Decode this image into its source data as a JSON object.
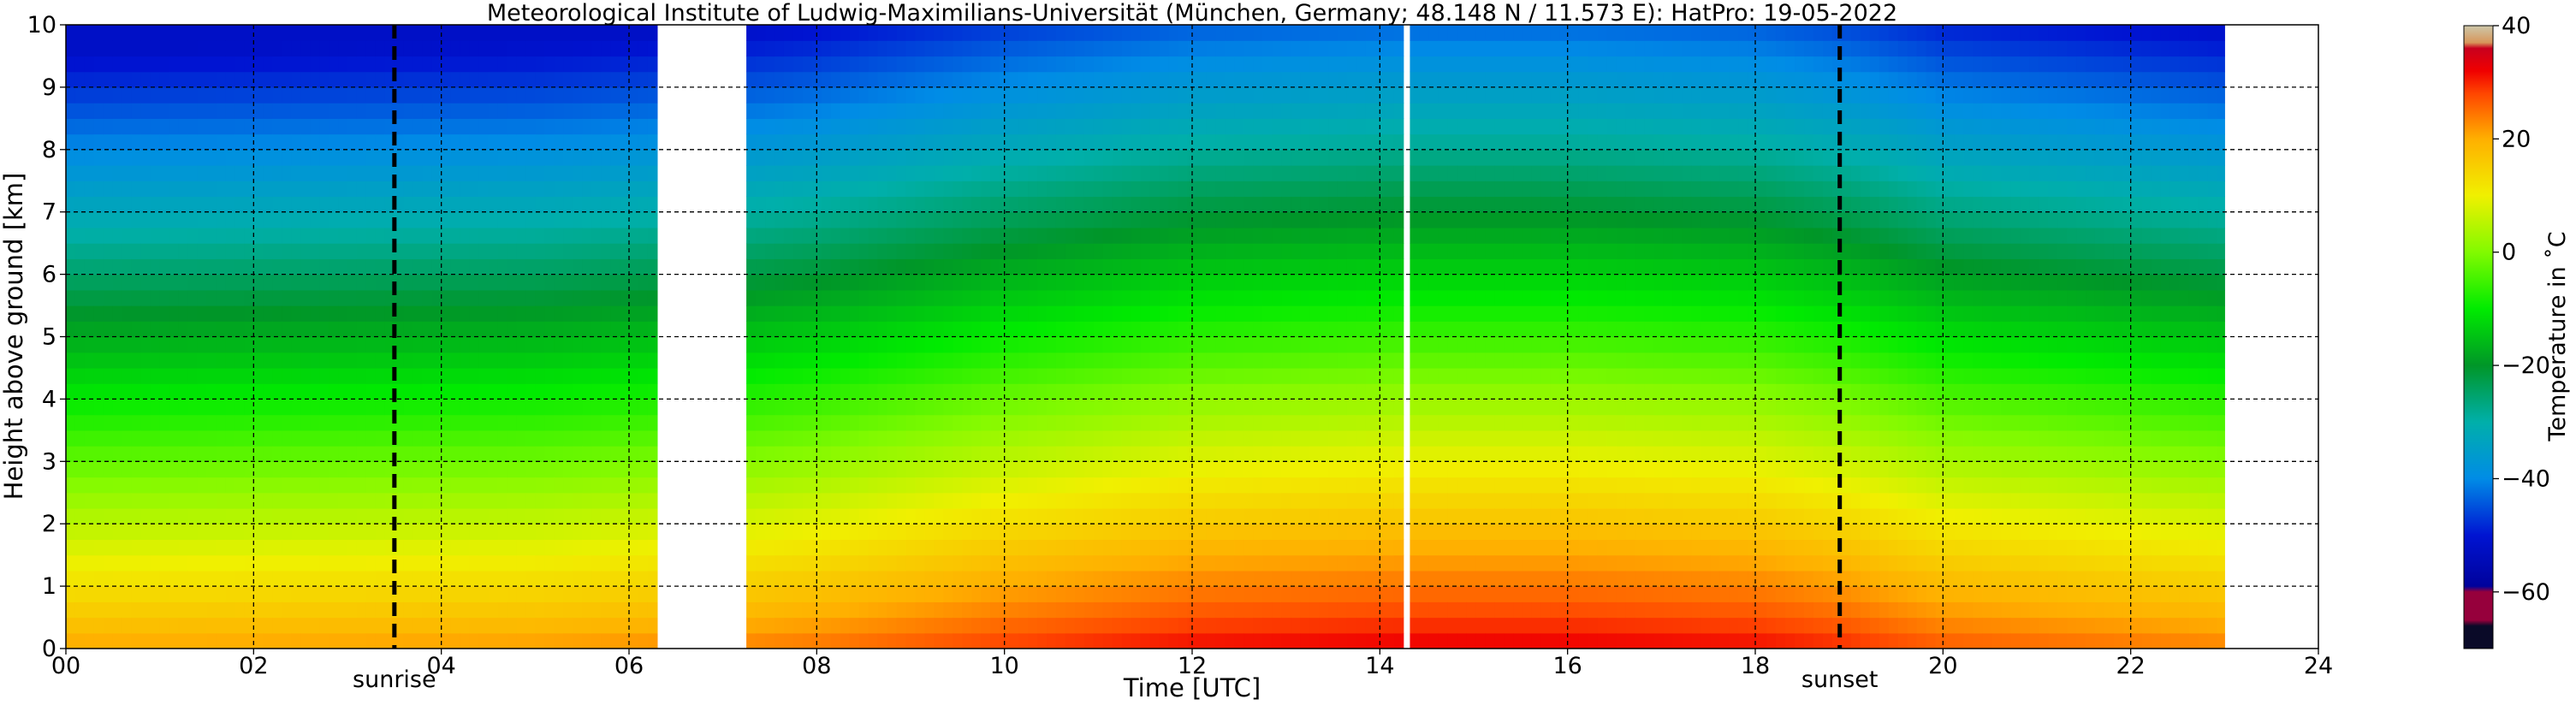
{
  "chart_data": {
    "type": "heatmap",
    "title": "Meteorological Institute of Ludwig-Maximilians-Universität (München, Germany; 48.148 N / 11.573 E):    HatPro: 19-05-2022",
    "xlabel": "Time [UTC]",
    "ylabel": "Height above ground [km]",
    "xlim": [
      0,
      24
    ],
    "ylim": [
      0,
      10
    ],
    "xticks": [
      "00",
      "02",
      "04",
      "06",
      "08",
      "10",
      "12",
      "14",
      "16",
      "18",
      "20",
      "22",
      "24"
    ],
    "yticks": [
      "0",
      "1",
      "2",
      "3",
      "4",
      "5",
      "6",
      "7",
      "8",
      "9",
      "10"
    ],
    "grid": true,
    "data_segments": [
      [
        0,
        6.3
      ],
      [
        7.25,
        14.25
      ],
      [
        14.32,
        23.0
      ]
    ],
    "markers": [
      {
        "label": "sunrise",
        "time": 3.5
      },
      {
        "label": "sunset",
        "time": 18.9
      }
    ],
    "colorbar": {
      "label": "Temperature in ˚C",
      "range": [
        -70,
        40
      ],
      "ticks": [
        "40",
        "20",
        "0",
        "−20",
        "−40",
        "−60"
      ],
      "tick_values": [
        40,
        20,
        0,
        -20,
        -40,
        -60
      ]
    },
    "surface_temperature_c": [
      {
        "time": 0,
        "value": 20
      },
      {
        "time": 5,
        "value": 21
      },
      {
        "time": 6.3,
        "value": 22
      },
      {
        "time": 7.25,
        "value": 23
      },
      {
        "time": 8,
        "value": 24
      },
      {
        "time": 10,
        "value": 28
      },
      {
        "time": 12,
        "value": 31
      },
      {
        "time": 14.25,
        "value": 32
      },
      {
        "time": 16,
        "value": 32
      },
      {
        "time": 18,
        "value": 31
      },
      {
        "time": 19,
        "value": 29
      },
      {
        "time": 20,
        "value": 26
      },
      {
        "time": 22,
        "value": 24
      },
      {
        "time": 23,
        "value": 23
      }
    ],
    "lapse_rate_c_per_km": 7.5,
    "top_temperature_c": -52
  }
}
